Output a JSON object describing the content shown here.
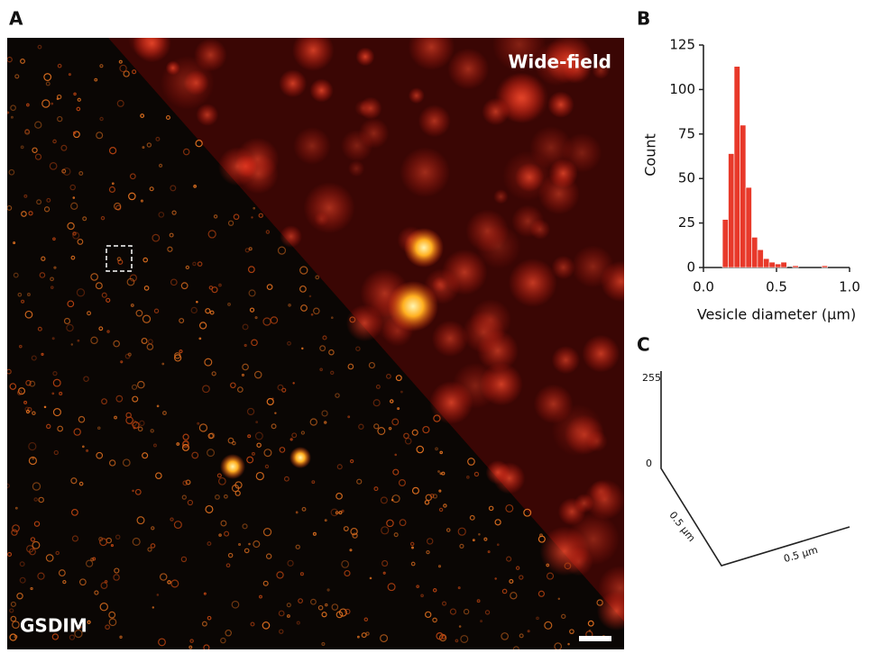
{
  "panels": {
    "a": {
      "label": "A",
      "top_label": "Wide-field",
      "bottom_label": "GSDIM"
    },
    "b": {
      "label": "B"
    },
    "c": {
      "label": "C",
      "z_max": "255",
      "z_min": "0",
      "y_label": "0.5 μm",
      "x_label": "0.5 μm"
    }
  },
  "chart_data": {
    "type": "histogram",
    "x_label": "Vesicle diameter (μm)",
    "y_label": "Count",
    "color": "#e8392a",
    "bins": [
      0.13,
      0.17,
      0.21,
      0.25,
      0.29,
      0.33,
      0.37,
      0.41,
      0.45,
      0.49,
      0.53,
      0.57,
      0.61,
      0.65,
      0.69,
      0.73,
      0.77,
      0.81,
      0.85
    ],
    "values": [
      27,
      64,
      113,
      80,
      45,
      17,
      10,
      5,
      3,
      2,
      3,
      0,
      1,
      0,
      0,
      0,
      0,
      1
    ],
    "xlim": [
      0,
      1
    ],
    "ylim": [
      0,
      125
    ],
    "xticks": [
      {
        "value": 0,
        "label": "0.0"
      },
      0.5,
      {
        "value": 1,
        "label": "1.0"
      }
    ],
    "yticks": [
      0,
      25,
      50,
      75,
      100,
      125
    ]
  }
}
